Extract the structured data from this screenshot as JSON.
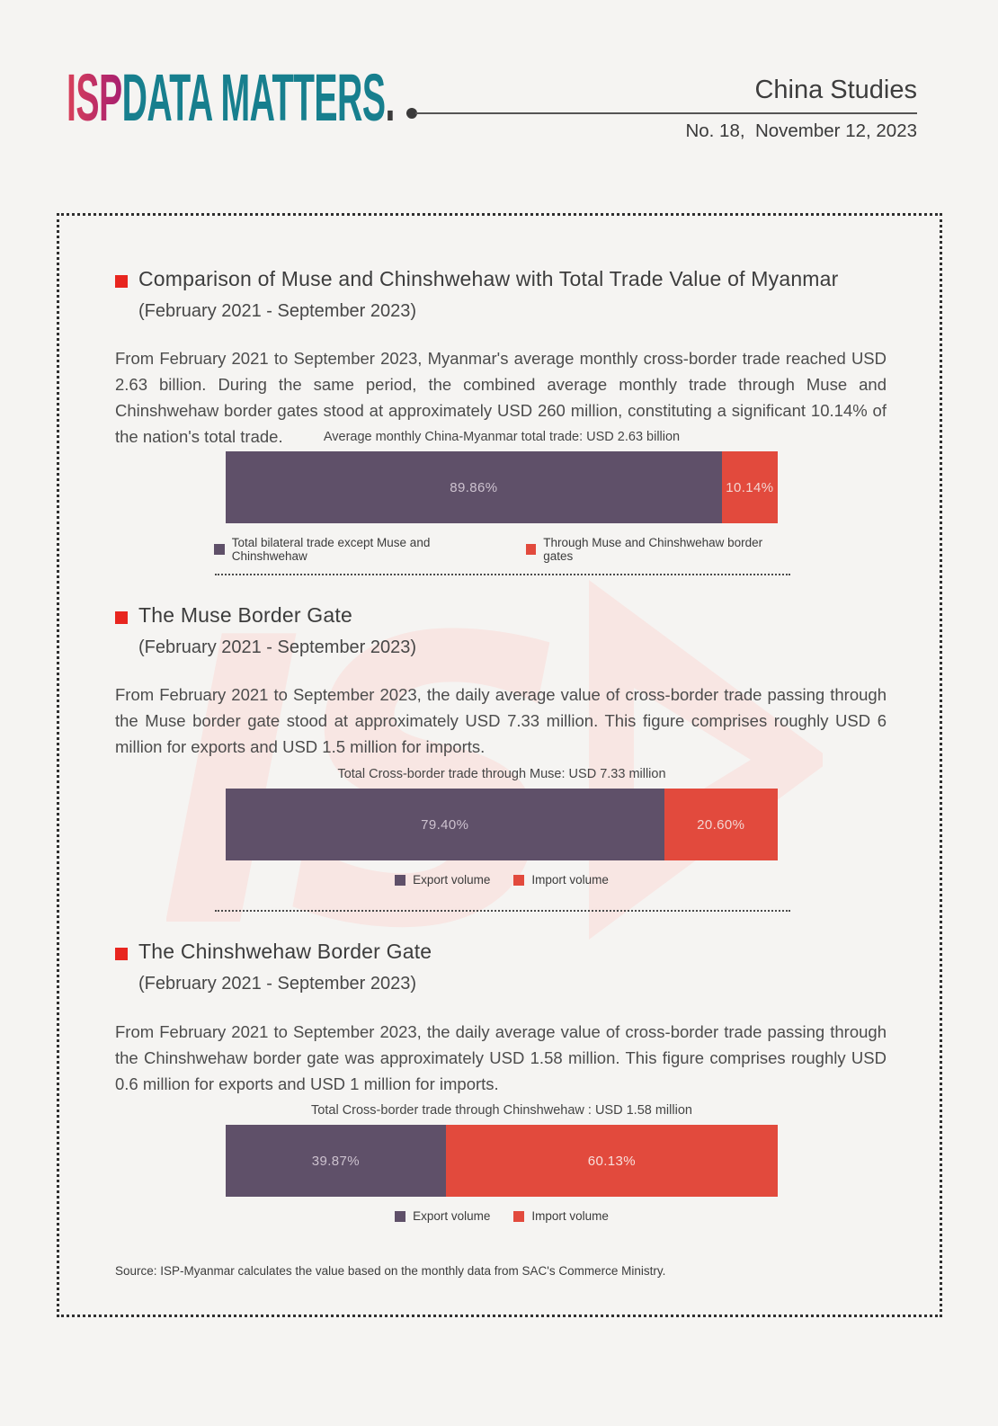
{
  "header": {
    "logo_isp": "ISP",
    "logo_rest": "DATA MATTERS",
    "logo_dot": ".",
    "publication": "China Studies",
    "issue_line": "No. 18,  November 12, 2023"
  },
  "colors": {
    "background": "#f5f4f2",
    "accent_red": "#e8251f",
    "bar_purple": "#5f5069",
    "bar_red": "#e24a3d",
    "teal": "#177f8e",
    "magenta": "#a81f70",
    "watermark_pink": "#f8e6e3"
  },
  "sections": [
    {
      "title": "Comparison of Muse and Chinshwehaw with Total Trade Value of Myanmar",
      "subtitle": "(February 2021 - September 2023)",
      "body": "From February 2021 to September 2023, Myanmar's average monthly cross-border trade reached USD 2.63 billion. During the same period, the combined average monthly trade through Muse and Chinshwehaw border gates stood at approximately USD 260 million, constituting a significant 10.14% of the nation's total trade."
    },
    {
      "title": "The Muse Border Gate",
      "subtitle": "(February 2021 - September 2023)",
      "body": "From February 2021 to September 2023, the daily average value of cross-border trade passing through the Muse border gate stood at approximately USD 7.33 million. This figure comprises roughly USD 6 million for exports and USD 1.5 million for imports."
    },
    {
      "title": "The Chinshwehaw Border Gate",
      "subtitle": "(February 2021 - September 2023)",
      "body": "From February 2021 to September 2023, the daily average value of cross-border trade passing through the Chinshwehaw border gate was approximately USD 1.58 million. This figure comprises roughly USD 0.6 million for exports and USD 1 million for imports."
    }
  ],
  "chart_data": [
    {
      "type": "bar",
      "orientation": "horizontal-stacked",
      "title": "Average monthly China-Myanmar total trade: USD 2.63 billion",
      "unit": "%",
      "xlim": [
        0,
        100
      ],
      "legend_position": "bottom",
      "series": [
        {
          "name": "Total bilateral trade except Muse and Chinshwehaw",
          "value": 89.86,
          "label": "89.86%",
          "color": "#5f5069",
          "label_color": "#cdc2cf"
        },
        {
          "name": "Through Muse and Chinshwehaw border gates",
          "value": 10.14,
          "label": "10.14%",
          "color": "#e24a3d",
          "label_color": "#f3d6d2"
        }
      ]
    },
    {
      "type": "bar",
      "orientation": "horizontal-stacked",
      "title": "Total Cross-border trade through Muse: USD 7.33 million",
      "unit": "%",
      "xlim": [
        0,
        100
      ],
      "legend_position": "bottom",
      "series": [
        {
          "name": "Export volume",
          "value": 79.4,
          "label": "79.40%",
          "color": "#5f5069",
          "label_color": "#cdc2cf"
        },
        {
          "name": "Import volume",
          "value": 20.6,
          "label": "20.60%",
          "color": "#e24a3d",
          "label_color": "#f3d6d2"
        }
      ]
    },
    {
      "type": "bar",
      "orientation": "horizontal-stacked",
      "title": "Total Cross-border trade through Chinshwehaw : USD 1.58 million",
      "unit": "%",
      "xlim": [
        0,
        100
      ],
      "legend_position": "bottom",
      "series": [
        {
          "name": "Export volume",
          "value": 39.87,
          "label": "39.87%",
          "color": "#5f5069",
          "label_color": "#cdc2cf"
        },
        {
          "name": "Import volume",
          "value": 60.13,
          "label": "60.13%",
          "color": "#e24a3d",
          "label_color": "#f8e0dc"
        }
      ]
    }
  ],
  "footer": {
    "source": "Source: ISP-Myanmar calculates the value based on the monthly data from SAC's Commerce Ministry."
  }
}
